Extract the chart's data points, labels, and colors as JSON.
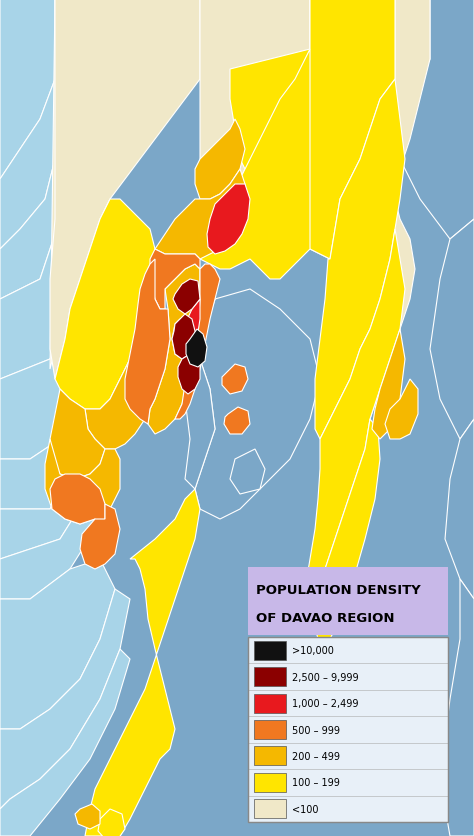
{
  "title_line1": "POPULATION DENSITY",
  "title_line2": "OF DAVAO REGION",
  "title_bg_color": "#c8b8e8",
  "legend_bg_color": "#e8f0f8",
  "legend_border_color": "#aaaaaa",
  "ocean_color": "#7ba7c8",
  "light_blue_color": "#a8d4e8",
  "c_less100": "#f0e8c8",
  "c_100_199": "#ffe500",
  "c_200_499": "#f5b800",
  "c_500_999": "#f07820",
  "c_1000_2499": "#e8191e",
  "c_2500_9999": "#8b0000",
  "c_gt10000": "#111111",
  "legend_items": [
    {
      "label": ">10,000",
      "color": "#111111"
    },
    {
      "label": "2,500 – 9,999",
      "color": "#8b0000"
    },
    {
      "label": "1,000 – 2,499",
      "color": "#e8191e"
    },
    {
      "label": "500 – 999",
      "color": "#f07820"
    },
    {
      "label": "200 – 499",
      "color": "#f5b800"
    },
    {
      "label": "100 – 199",
      "color": "#ffe500"
    },
    {
      "label": "<100",
      "color": "#f0e8c8"
    }
  ],
  "figsize": [
    4.74,
    8.37
  ],
  "dpi": 100
}
